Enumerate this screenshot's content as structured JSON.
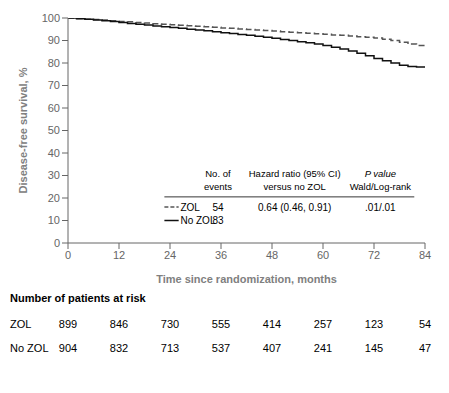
{
  "chart_data": {
    "type": "line",
    "x": [
      0,
      2,
      4,
      6,
      8,
      10,
      12,
      14,
      16,
      18,
      20,
      22,
      24,
      26,
      28,
      30,
      32,
      34,
      36,
      38,
      40,
      42,
      44,
      46,
      48,
      50,
      52,
      54,
      56,
      58,
      60,
      62,
      64,
      66,
      68,
      70,
      72,
      74,
      76,
      78,
      80,
      82,
      84
    ],
    "series": [
      {
        "name": "ZOL",
        "color": "#555555",
        "line_style": "dashed",
        "values": [
          100,
          99.8,
          99.5,
          99.3,
          99.1,
          98.8,
          98.5,
          98.3,
          98.0,
          97.8,
          97.5,
          97.2,
          97.0,
          96.8,
          96.6,
          96.3,
          96.1,
          95.9,
          95.6,
          95.4,
          95.1,
          94.9,
          94.7,
          94.4,
          94.2,
          93.9,
          93.7,
          93.4,
          93.2,
          93.0,
          92.8,
          92.5,
          92.3,
          92.0,
          91.7,
          91.4,
          91.1,
          90.6,
          90.0,
          89.2,
          88.4,
          87.8,
          87.3
        ]
      },
      {
        "name": "No ZOL",
        "color": "#111111",
        "line_style": "solid",
        "values": [
          100,
          99.7,
          99.4,
          99.1,
          98.8,
          98.4,
          98.0,
          97.6,
          97.2,
          96.9,
          96.5,
          96.1,
          95.8,
          95.4,
          95.0,
          94.7,
          94.3,
          93.9,
          93.5,
          93.1,
          92.7,
          92.3,
          91.9,
          91.5,
          91.0,
          90.5,
          90.0,
          89.5,
          89.0,
          88.4,
          87.8,
          87.0,
          86.2,
          85.3,
          84.3,
          83.2,
          82.0,
          81.0,
          80.0,
          79.0,
          78.5,
          78.2,
          78.0
        ]
      }
    ],
    "xlim": [
      0,
      84
    ],
    "ylim": [
      0,
      100
    ],
    "xticks": [
      0,
      12,
      24,
      36,
      48,
      60,
      72,
      84
    ],
    "yticks": [
      0,
      10,
      20,
      30,
      40,
      50,
      60,
      70,
      80,
      90,
      100
    ],
    "xlabel": "Time since randomization, months",
    "ylabel": "Disease-free survival, %",
    "grid": false,
    "legend_table": {
      "headers": [
        [
          "No. of",
          "events"
        ],
        [
          "Hazard ratio (95% CI)",
          "versus no ZOL"
        ],
        [
          "P value",
          "Wald/Log-rank"
        ]
      ],
      "rows": [
        {
          "events": 54,
          "hazard_ratio": "0.64 (0.46, 0.91)",
          "p_value": ".01/.01"
        },
        {
          "events": 83
        }
      ]
    },
    "at_risk": {
      "label": "Number of patients at risk",
      "x": [
        0,
        12,
        24,
        36,
        48,
        60,
        72,
        84
      ],
      "values": [
        [
          899,
          846,
          730,
          555,
          414,
          257,
          123,
          54
        ],
        [
          904,
          832,
          713,
          537,
          407,
          241,
          145,
          47
        ]
      ]
    }
  }
}
